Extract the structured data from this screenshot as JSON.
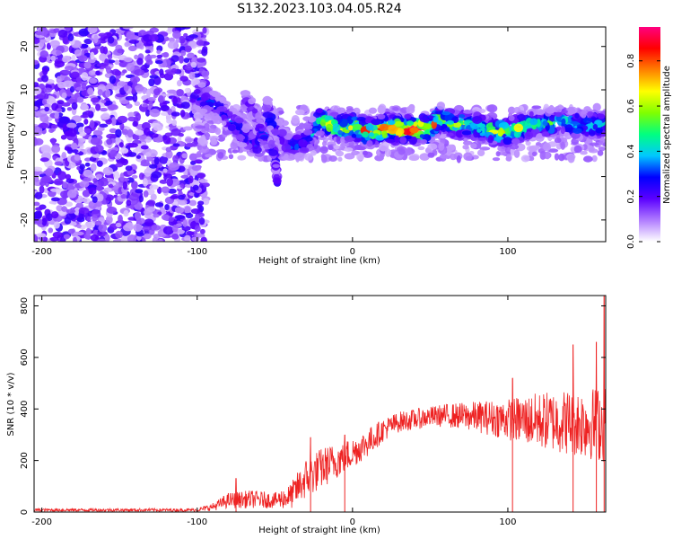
{
  "title": "S132.2023.103.04.05.R24",
  "chart_data": [
    {
      "type": "heatmap",
      "xlabel": "Height of straight line (km)",
      "ylabel": "Frequency (Hz)",
      "xlim": [
        -205,
        163
      ],
      "ylim": [
        -25,
        24.5
      ],
      "xticks": [
        -200,
        -100,
        0,
        100
      ],
      "yticks": [
        20,
        10,
        0,
        -10,
        -20
      ],
      "xtick_labels": [
        "-200",
        "-100",
        "0",
        "100"
      ],
      "ytick_labels": [
        "20",
        "10",
        "0",
        "-10",
        "-20"
      ],
      "colorbar": {
        "label": "Normalized spectral amplitude",
        "range": [
          0,
          0.95
        ],
        "ticks": [
          0.0,
          0.2,
          0.4,
          0.6,
          0.8
        ],
        "tick_labels": [
          "0.0",
          "0.2",
          "0.4",
          "0.6",
          "0.8"
        ],
        "colors": [
          "#ffffff",
          "#b07cff",
          "#5b00ff",
          "#0000ff",
          "#00c8ff",
          "#00ff80",
          "#80ff00",
          "#ffff00",
          "#ff8000",
          "#ff0000",
          "#ff0080"
        ]
      },
      "ridge": [
        {
          "x": -100,
          "y": 9,
          "amp": 0.35
        },
        {
          "x": -92,
          "y": 7,
          "amp": 0.3
        },
        {
          "x": -84,
          "y": 5,
          "amp": 0.3
        },
        {
          "x": -76,
          "y": 2,
          "amp": 0.35
        },
        {
          "x": -68,
          "y": -1,
          "amp": 0.3
        },
        {
          "x": -60,
          "y": -3,
          "amp": 0.3
        },
        {
          "x": -55,
          "y": 5,
          "amp": 0.35
        },
        {
          "x": -48,
          "y": 0,
          "amp": 0.25
        },
        {
          "x": -42,
          "y": -3,
          "amp": 0.3
        },
        {
          "x": -36,
          "y": -3,
          "amp": 0.35
        },
        {
          "x": -28,
          "y": -1,
          "amp": 0.35
        },
        {
          "x": -22,
          "y": 3,
          "amp": 0.5
        },
        {
          "x": -15,
          "y": 2,
          "amp": 0.7
        },
        {
          "x": -8,
          "y": 1,
          "amp": 0.6
        },
        {
          "x": 0,
          "y": 1.5,
          "amp": 0.7
        },
        {
          "x": 10,
          "y": 0.5,
          "amp": 0.75
        },
        {
          "x": 20,
          "y": 1,
          "amp": 0.85
        },
        {
          "x": 30,
          "y": 1,
          "amp": 0.9
        },
        {
          "x": 40,
          "y": 1,
          "amp": 0.9
        },
        {
          "x": 50,
          "y": 1,
          "amp": 0.8
        },
        {
          "x": 56,
          "y": 3.5,
          "amp": 0.6
        },
        {
          "x": 65,
          "y": 2,
          "amp": 0.6
        },
        {
          "x": 75,
          "y": 2,
          "amp": 0.6
        },
        {
          "x": 85,
          "y": 1,
          "amp": 0.5
        },
        {
          "x": 95,
          "y": 0,
          "amp": 0.7
        },
        {
          "x": 105,
          "y": 1,
          "amp": 0.6
        },
        {
          "x": 115,
          "y": 2,
          "amp": 0.5
        },
        {
          "x": 125,
          "y": 2,
          "amp": 0.5
        },
        {
          "x": 135,
          "y": 3,
          "amp": 0.45
        },
        {
          "x": 145,
          "y": 2,
          "amp": 0.45
        },
        {
          "x": 155,
          "y": 2,
          "amp": 0.45
        },
        {
          "x": 163,
          "y": 2,
          "amp": 0.4
        }
      ],
      "secondary_ridge": [
        {
          "x": -70,
          "y": 8,
          "amp": 0.25
        },
        {
          "x": -62,
          "y": 4,
          "amp": 0.25
        },
        {
          "x": -58,
          "y": 0,
          "amp": 0.3
        },
        {
          "x": -50,
          "y": -5,
          "amp": 0.25
        },
        {
          "x": -48,
          "y": -13,
          "amp": 0.2
        }
      ],
      "noise_region": {
        "x_from": -205,
        "x_to": -100,
        "amp": 0.12
      }
    },
    {
      "type": "line",
      "xlabel": "Height of straight line (km)",
      "ylabel": "SNR (10 * v/v)",
      "xlim": [
        -205,
        163
      ],
      "ylim": [
        0,
        840
      ],
      "xticks": [
        -200,
        -100,
        0,
        100
      ],
      "yticks": [
        0,
        200,
        400,
        600,
        800
      ],
      "xtick_labels": [
        "-200",
        "-100",
        "0",
        "100"
      ],
      "ytick_labels": [
        "0",
        "200",
        "400",
        "600",
        "800"
      ],
      "series": [
        {
          "name": "SNR",
          "color": "#ee2222",
          "envelope": [
            {
              "x": -205,
              "mean": 8,
              "spread": 6
            },
            {
              "x": -100,
              "mean": 8,
              "spread": 6
            },
            {
              "x": -90,
              "mean": 20,
              "spread": 15
            },
            {
              "x": -80,
              "mean": 45,
              "spread": 30
            },
            {
              "x": -65,
              "mean": 50,
              "spread": 35
            },
            {
              "x": -50,
              "mean": 45,
              "spread": 30
            },
            {
              "x": -40,
              "mean": 60,
              "spread": 50
            },
            {
              "x": -30,
              "mean": 130,
              "spread": 80
            },
            {
              "x": -20,
              "mean": 170,
              "spread": 80
            },
            {
              "x": -10,
              "mean": 200,
              "spread": 70
            },
            {
              "x": 0,
              "mean": 230,
              "spread": 60
            },
            {
              "x": 10,
              "mean": 270,
              "spread": 55
            },
            {
              "x": 20,
              "mean": 320,
              "spread": 45
            },
            {
              "x": 30,
              "mean": 350,
              "spread": 40
            },
            {
              "x": 40,
              "mean": 360,
              "spread": 40
            },
            {
              "x": 50,
              "mean": 370,
              "spread": 40
            },
            {
              "x": 60,
              "mean": 375,
              "spread": 45
            },
            {
              "x": 80,
              "mean": 370,
              "spread": 60
            },
            {
              "x": 100,
              "mean": 360,
              "spread": 80
            },
            {
              "x": 120,
              "mean": 355,
              "spread": 110
            },
            {
              "x": 140,
              "mean": 350,
              "spread": 130
            },
            {
              "x": 163,
              "mean": 340,
              "spread": 150
            }
          ],
          "peaks": [
            {
              "x": -75,
              "y": 130
            },
            {
              "x": -27,
              "y": 290
            },
            {
              "x": -5,
              "y": 300
            },
            {
              "x": 103,
              "y": 520
            },
            {
              "x": 142,
              "y": 650
            },
            {
              "x": 157,
              "y": 660
            },
            {
              "x": 162,
              "y": 845
            }
          ]
        }
      ]
    }
  ]
}
